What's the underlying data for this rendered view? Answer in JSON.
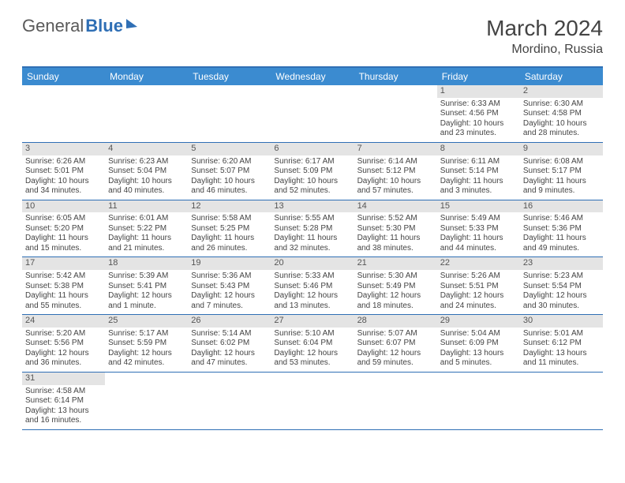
{
  "logo": {
    "part1": "General",
    "part2": "Blue"
  },
  "title": "March 2024",
  "location": "Mordino, Russia",
  "colors": {
    "header_bg": "#3b8bd0",
    "border": "#2f6fb5",
    "daynum_bg": "#e4e4e4",
    "text": "#444444"
  },
  "days_of_week": [
    "Sunday",
    "Monday",
    "Tuesday",
    "Wednesday",
    "Thursday",
    "Friday",
    "Saturday"
  ],
  "weeks": [
    [
      null,
      null,
      null,
      null,
      null,
      {
        "n": "1",
        "sr": "Sunrise: 6:33 AM",
        "ss": "Sunset: 4:56 PM",
        "dl": "Daylight: 10 hours and 23 minutes."
      },
      {
        "n": "2",
        "sr": "Sunrise: 6:30 AM",
        "ss": "Sunset: 4:58 PM",
        "dl": "Daylight: 10 hours and 28 minutes."
      }
    ],
    [
      {
        "n": "3",
        "sr": "Sunrise: 6:26 AM",
        "ss": "Sunset: 5:01 PM",
        "dl": "Daylight: 10 hours and 34 minutes."
      },
      {
        "n": "4",
        "sr": "Sunrise: 6:23 AM",
        "ss": "Sunset: 5:04 PM",
        "dl": "Daylight: 10 hours and 40 minutes."
      },
      {
        "n": "5",
        "sr": "Sunrise: 6:20 AM",
        "ss": "Sunset: 5:07 PM",
        "dl": "Daylight: 10 hours and 46 minutes."
      },
      {
        "n": "6",
        "sr": "Sunrise: 6:17 AM",
        "ss": "Sunset: 5:09 PM",
        "dl": "Daylight: 10 hours and 52 minutes."
      },
      {
        "n": "7",
        "sr": "Sunrise: 6:14 AM",
        "ss": "Sunset: 5:12 PM",
        "dl": "Daylight: 10 hours and 57 minutes."
      },
      {
        "n": "8",
        "sr": "Sunrise: 6:11 AM",
        "ss": "Sunset: 5:14 PM",
        "dl": "Daylight: 11 hours and 3 minutes."
      },
      {
        "n": "9",
        "sr": "Sunrise: 6:08 AM",
        "ss": "Sunset: 5:17 PM",
        "dl": "Daylight: 11 hours and 9 minutes."
      }
    ],
    [
      {
        "n": "10",
        "sr": "Sunrise: 6:05 AM",
        "ss": "Sunset: 5:20 PM",
        "dl": "Daylight: 11 hours and 15 minutes."
      },
      {
        "n": "11",
        "sr": "Sunrise: 6:01 AM",
        "ss": "Sunset: 5:22 PM",
        "dl": "Daylight: 11 hours and 21 minutes."
      },
      {
        "n": "12",
        "sr": "Sunrise: 5:58 AM",
        "ss": "Sunset: 5:25 PM",
        "dl": "Daylight: 11 hours and 26 minutes."
      },
      {
        "n": "13",
        "sr": "Sunrise: 5:55 AM",
        "ss": "Sunset: 5:28 PM",
        "dl": "Daylight: 11 hours and 32 minutes."
      },
      {
        "n": "14",
        "sr": "Sunrise: 5:52 AM",
        "ss": "Sunset: 5:30 PM",
        "dl": "Daylight: 11 hours and 38 minutes."
      },
      {
        "n": "15",
        "sr": "Sunrise: 5:49 AM",
        "ss": "Sunset: 5:33 PM",
        "dl": "Daylight: 11 hours and 44 minutes."
      },
      {
        "n": "16",
        "sr": "Sunrise: 5:46 AM",
        "ss": "Sunset: 5:36 PM",
        "dl": "Daylight: 11 hours and 49 minutes."
      }
    ],
    [
      {
        "n": "17",
        "sr": "Sunrise: 5:42 AM",
        "ss": "Sunset: 5:38 PM",
        "dl": "Daylight: 11 hours and 55 minutes."
      },
      {
        "n": "18",
        "sr": "Sunrise: 5:39 AM",
        "ss": "Sunset: 5:41 PM",
        "dl": "Daylight: 12 hours and 1 minute."
      },
      {
        "n": "19",
        "sr": "Sunrise: 5:36 AM",
        "ss": "Sunset: 5:43 PM",
        "dl": "Daylight: 12 hours and 7 minutes."
      },
      {
        "n": "20",
        "sr": "Sunrise: 5:33 AM",
        "ss": "Sunset: 5:46 PM",
        "dl": "Daylight: 12 hours and 13 minutes."
      },
      {
        "n": "21",
        "sr": "Sunrise: 5:30 AM",
        "ss": "Sunset: 5:49 PM",
        "dl": "Daylight: 12 hours and 18 minutes."
      },
      {
        "n": "22",
        "sr": "Sunrise: 5:26 AM",
        "ss": "Sunset: 5:51 PM",
        "dl": "Daylight: 12 hours and 24 minutes."
      },
      {
        "n": "23",
        "sr": "Sunrise: 5:23 AM",
        "ss": "Sunset: 5:54 PM",
        "dl": "Daylight: 12 hours and 30 minutes."
      }
    ],
    [
      {
        "n": "24",
        "sr": "Sunrise: 5:20 AM",
        "ss": "Sunset: 5:56 PM",
        "dl": "Daylight: 12 hours and 36 minutes."
      },
      {
        "n": "25",
        "sr": "Sunrise: 5:17 AM",
        "ss": "Sunset: 5:59 PM",
        "dl": "Daylight: 12 hours and 42 minutes."
      },
      {
        "n": "26",
        "sr": "Sunrise: 5:14 AM",
        "ss": "Sunset: 6:02 PM",
        "dl": "Daylight: 12 hours and 47 minutes."
      },
      {
        "n": "27",
        "sr": "Sunrise: 5:10 AM",
        "ss": "Sunset: 6:04 PM",
        "dl": "Daylight: 12 hours and 53 minutes."
      },
      {
        "n": "28",
        "sr": "Sunrise: 5:07 AM",
        "ss": "Sunset: 6:07 PM",
        "dl": "Daylight: 12 hours and 59 minutes."
      },
      {
        "n": "29",
        "sr": "Sunrise: 5:04 AM",
        "ss": "Sunset: 6:09 PM",
        "dl": "Daylight: 13 hours and 5 minutes."
      },
      {
        "n": "30",
        "sr": "Sunrise: 5:01 AM",
        "ss": "Sunset: 6:12 PM",
        "dl": "Daylight: 13 hours and 11 minutes."
      }
    ],
    [
      {
        "n": "31",
        "sr": "Sunrise: 4:58 AM",
        "ss": "Sunset: 6:14 PM",
        "dl": "Daylight: 13 hours and 16 minutes."
      },
      null,
      null,
      null,
      null,
      null,
      null
    ]
  ]
}
